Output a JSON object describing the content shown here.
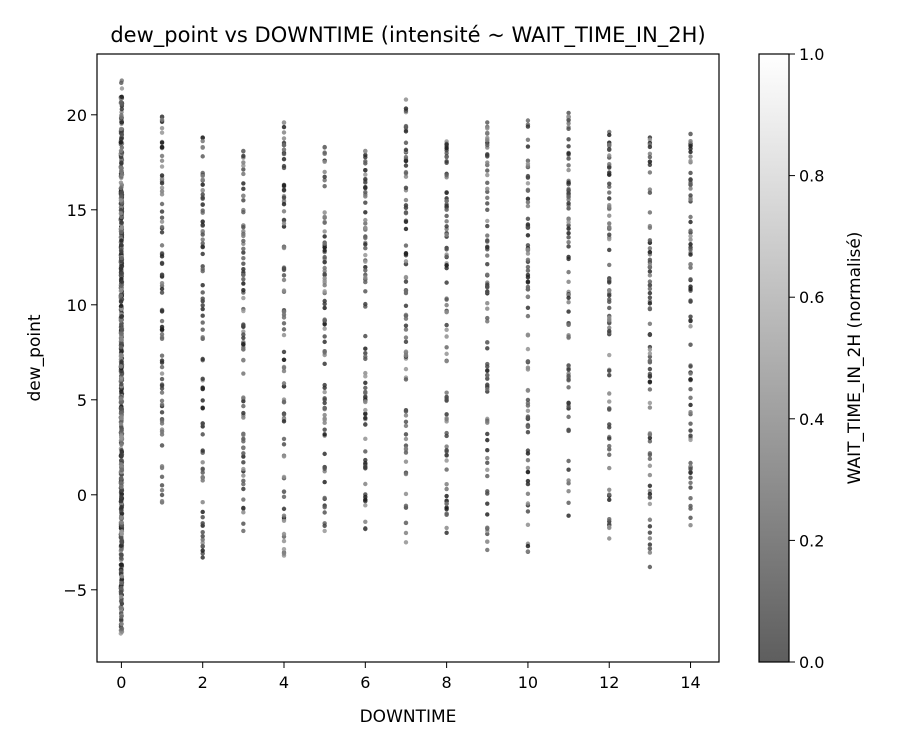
{
  "chart_data": {
    "type": "scatter",
    "title": "dew_point vs DOWNTIME (intensité ~ WAIT_TIME_IN_2H)",
    "xlabel": "DOWNTIME",
    "ylabel": "dew_point",
    "xlim": [
      -0.6,
      14.7
    ],
    "ylim": [
      -8.8,
      23.2
    ],
    "xticks": [
      0,
      2,
      4,
      6,
      8,
      10,
      12,
      14
    ],
    "yticks": [
      -5,
      0,
      5,
      10,
      15,
      20
    ],
    "grid": false,
    "legend": "none",
    "colorbar": {
      "label": "WAIT_TIME_IN_2H (normalisé)",
      "range": [
        0.0,
        1.0
      ],
      "ticks": [
        "0.0",
        "0.2",
        "0.4",
        "0.6",
        "0.8",
        "1.0"
      ],
      "color_low": "#5e5e5e",
      "color_high": "#ffffff"
    },
    "marker_color_range": [
      "#1a1a1a",
      "#9a9a9a"
    ],
    "columns": [
      {
        "x": 0,
        "ymin": -7.3,
        "ymax": 21.8,
        "n": 700
      },
      {
        "x": 1,
        "ymin": -0.4,
        "ymax": 19.9,
        "n": 85
      },
      {
        "x": 2,
        "ymin": -3.3,
        "ymax": 18.8,
        "n": 85
      },
      {
        "x": 3,
        "ymin": -1.9,
        "ymax": 18.1,
        "n": 85
      },
      {
        "x": 4,
        "ymin": -3.2,
        "ymax": 19.6,
        "n": 85
      },
      {
        "x": 5,
        "ymin": -1.9,
        "ymax": 18.3,
        "n": 85
      },
      {
        "x": 6,
        "ymin": -1.8,
        "ymax": 18.1,
        "n": 85
      },
      {
        "x": 7,
        "ymin": -2.5,
        "ymax": 20.8,
        "n": 85
      },
      {
        "x": 8,
        "ymin": -2.0,
        "ymax": 18.6,
        "n": 85
      },
      {
        "x": 9,
        "ymin": -2.9,
        "ymax": 19.6,
        "n": 85
      },
      {
        "x": 10,
        "ymin": -3.0,
        "ymax": 19.7,
        "n": 85
      },
      {
        "x": 11,
        "ymin": -1.1,
        "ymax": 20.1,
        "n": 85
      },
      {
        "x": 12,
        "ymin": -2.3,
        "ymax": 19.1,
        "n": 85
      },
      {
        "x": 13,
        "ymin": -3.8,
        "ymax": 18.8,
        "n": 85
      },
      {
        "x": 14,
        "ymin": -1.6,
        "ymax": 19.0,
        "n": 85
      }
    ]
  }
}
